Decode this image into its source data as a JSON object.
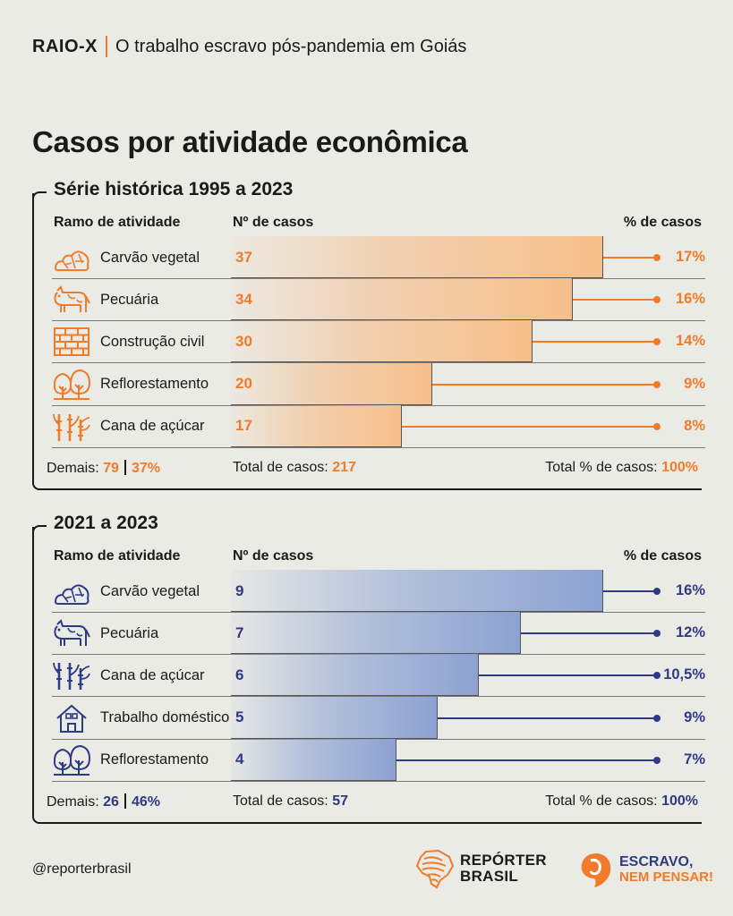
{
  "header": {
    "tag": "RAIO-X",
    "subtitle": "O trabalho escravo pós-pandemia em Goiás"
  },
  "title": "Casos por atividade econômica",
  "colors": {
    "orange": "#f07b2a",
    "blue": "#2f3a86",
    "background": "#ebebe6"
  },
  "chart_data": [
    {
      "type": "bar",
      "title": "Série histórica 1995 a 2023",
      "columns": {
        "activity": "Ramo de atividade",
        "cases": "Nº de casos",
        "percent": "% de casos"
      },
      "categories": [
        "Carvão vegetal",
        "Pecuária",
        "Construção civil",
        "Reflorestamento",
        "Cana de açúcar"
      ],
      "icons": [
        "charcoal-icon",
        "cow-icon",
        "brick-wall-icon",
        "trees-icon",
        "sugarcane-icon"
      ],
      "values": [
        37,
        34,
        30,
        20,
        17
      ],
      "percent_labels": [
        "17%",
        "16%",
        "14%",
        "9%",
        "8%"
      ],
      "xlim": [
        0,
        37
      ],
      "footer": {
        "others_label": "Demais:",
        "others_cases": "79",
        "others_percent": "37%",
        "total_label": "Total de casos:",
        "total": "217",
        "total_pct_label": "Total % de casos:",
        "total_pct": "100%"
      },
      "color": "#f07b2a"
    },
    {
      "type": "bar",
      "title": "2021 a 2023",
      "columns": {
        "activity": "Ramo de atividade",
        "cases": "Nº de casos",
        "percent": "% de casos"
      },
      "categories": [
        "Carvão vegetal",
        "Pecuária",
        "Cana de açúcar",
        "Trabalho doméstico",
        "Reflorestamento"
      ],
      "icons": [
        "charcoal-icon",
        "cow-icon",
        "sugarcane-icon",
        "house-icon",
        "trees-icon"
      ],
      "values": [
        9,
        7,
        6,
        5,
        4
      ],
      "percent_labels": [
        "16%",
        "12%",
        "10,5%",
        "9%",
        "7%"
      ],
      "xlim": [
        0,
        9
      ],
      "footer": {
        "others_label": "Demais:",
        "others_cases": "26",
        "others_percent": "46%",
        "total_label": "Total de casos:",
        "total": "57",
        "total_pct_label": "Total % de casos:",
        "total_pct": "100%"
      },
      "color": "#2f3a86"
    }
  ],
  "footer": {
    "handle": "@reporterbrasil",
    "logo1": {
      "line1": "REPÓRTER",
      "line2": "BRASIL"
    },
    "logo2": {
      "line1": "ESCRAVO,",
      "line2": "NEM PENSAR!"
    }
  }
}
